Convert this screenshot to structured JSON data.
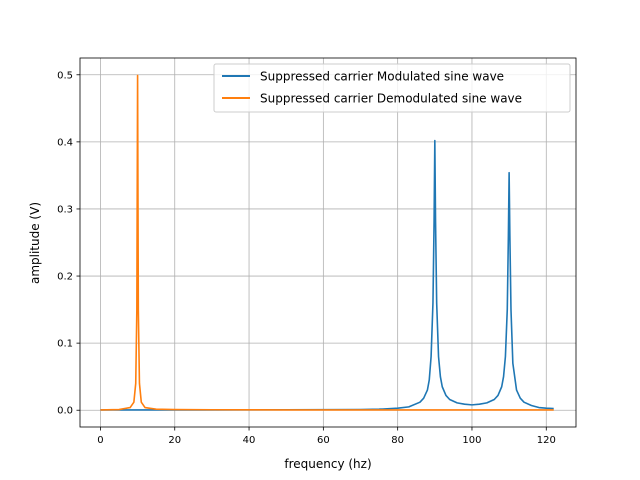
{
  "chart_data": {
    "type": "line",
    "title": "",
    "xlabel": "frequency (hz)",
    "ylabel": "amplitude (V)",
    "xlim": [
      -5.5,
      128
    ],
    "ylim": [
      -0.025,
      0.525
    ],
    "xticks": [
      0,
      20,
      40,
      60,
      80,
      100,
      120
    ],
    "yticks": [
      0.0,
      0.1,
      0.2,
      0.3,
      0.4,
      0.5
    ],
    "xtick_labels": [
      "0",
      "20",
      "40",
      "60",
      "80",
      "100",
      "120"
    ],
    "ytick_labels": [
      "0.0",
      "0.1",
      "0.2",
      "0.3",
      "0.4",
      "0.5"
    ],
    "grid": true,
    "legend_position": "top-right",
    "x": [
      0,
      5,
      8,
      9,
      9.5,
      9.8,
      10,
      10.2,
      10.5,
      11,
      12,
      15,
      20,
      30,
      40,
      50,
      60,
      70,
      75,
      80,
      83,
      86,
      87,
      88,
      88.5,
      89,
      89.5,
      89.8,
      90,
      90.2,
      90.5,
      91,
      91.5,
      92,
      93,
      94,
      96,
      98,
      100,
      102,
      104,
      106,
      107,
      108,
      108.5,
      109,
      109.5,
      109.8,
      110,
      110.2,
      110.5,
      111,
      112,
      113,
      114,
      116,
      118,
      120,
      122
    ],
    "series": [
      {
        "name": "Suppressed carrier Modulated sine wave",
        "color": "#1f77b4",
        "values": [
          0.0005,
          0.0005,
          0.0005,
          0.0005,
          0.0005,
          0.0005,
          0.0005,
          0.0005,
          0.0005,
          0.0005,
          0.0005,
          0.0005,
          0.0005,
          0.0005,
          0.0006,
          0.0007,
          0.0008,
          0.001,
          0.0015,
          0.003,
          0.005,
          0.012,
          0.018,
          0.03,
          0.045,
          0.08,
          0.16,
          0.28,
          0.402,
          0.28,
          0.16,
          0.08,
          0.05,
          0.035,
          0.022,
          0.016,
          0.011,
          0.009,
          0.008,
          0.009,
          0.011,
          0.016,
          0.022,
          0.035,
          0.05,
          0.08,
          0.15,
          0.26,
          0.354,
          0.26,
          0.15,
          0.07,
          0.03,
          0.018,
          0.012,
          0.007,
          0.004,
          0.003,
          0.0025
        ]
      },
      {
        "name": "Suppressed carrier Demodulated sine wave",
        "color": "#ff7f0e",
        "values": [
          0.0005,
          0.001,
          0.004,
          0.012,
          0.04,
          0.15,
          0.499,
          0.15,
          0.04,
          0.012,
          0.004,
          0.0015,
          0.001,
          0.0007,
          0.0006,
          0.0005,
          0.0005,
          0.0005,
          0.0005,
          0.0005,
          0.0005,
          0.0005,
          0.0005,
          0.0005,
          0.0005,
          0.0005,
          0.0005,
          0.0005,
          0.0005,
          0.0005,
          0.0005,
          0.0005,
          0.0005,
          0.0005,
          0.0005,
          0.0005,
          0.0005,
          0.0005,
          0.0005,
          0.0005,
          0.0005,
          0.0005,
          0.0005,
          0.0005,
          0.0005,
          0.0005,
          0.0005,
          0.0005,
          0.0005,
          0.0005,
          0.0005,
          0.0005,
          0.0005,
          0.0005,
          0.0005,
          0.0005,
          0.0005,
          0.0005,
          0.0005
        ]
      }
    ]
  }
}
